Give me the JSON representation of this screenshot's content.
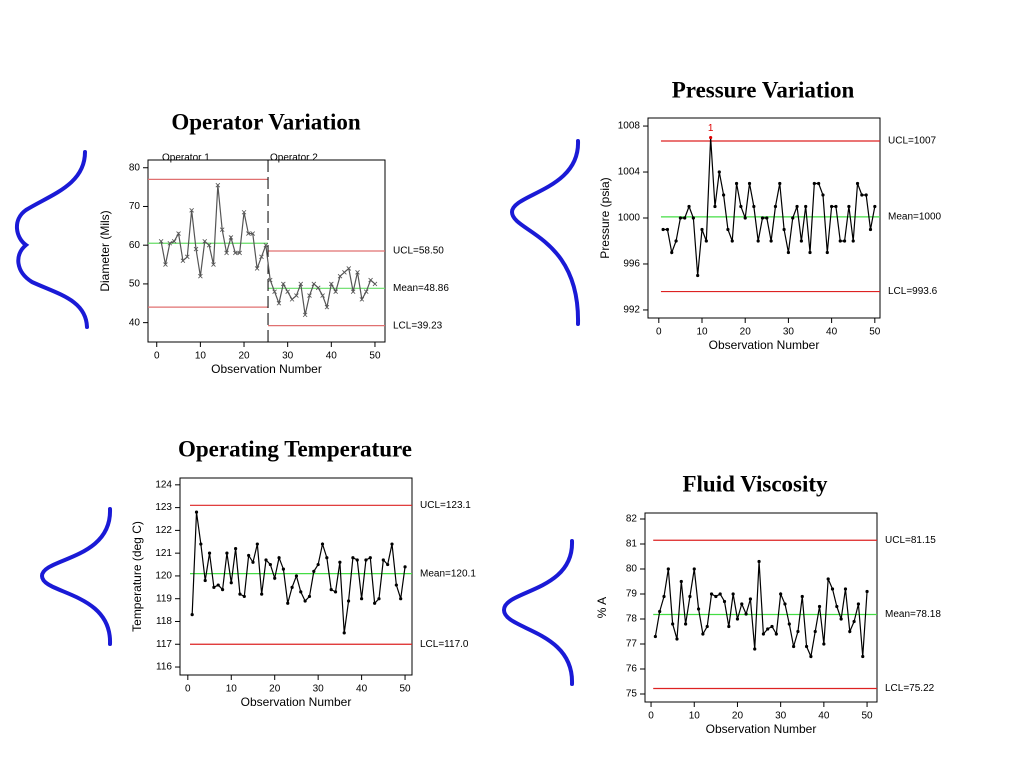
{
  "chart_data": [
    {
      "type": "line",
      "title": "Operator Variation",
      "xlabel": "Observation Number",
      "ylabel": "Diameter (Mils)",
      "x": [
        1,
        2,
        3,
        4,
        5,
        6,
        7,
        8,
        9,
        10,
        11,
        12,
        13,
        14,
        15,
        16,
        17,
        18,
        19,
        20,
        21,
        22,
        23,
        24,
        25,
        26,
        27,
        28,
        29,
        30,
        31,
        32,
        33,
        34,
        35,
        36,
        37,
        38,
        39,
        40,
        41,
        42,
        43,
        44,
        45,
        46,
        47,
        48,
        49,
        50
      ],
      "values": [
        61,
        55,
        60.5,
        61,
        63,
        56,
        57,
        69,
        59,
        52,
        61,
        60,
        55,
        75.5,
        64,
        58,
        62,
        58,
        58,
        68.5,
        63,
        63,
        54,
        57,
        60,
        51,
        48,
        45,
        50,
        48,
        46,
        47,
        50,
        42,
        47,
        50,
        49,
        47,
        44,
        50,
        48,
        52,
        53,
        54,
        48,
        53,
        46,
        48,
        51,
        50
      ],
      "color": "#555555",
      "marker": "x",
      "xlim": [
        -2,
        52.3
      ],
      "ylim": [
        35,
        82
      ],
      "xticks": [
        0,
        10,
        20,
        30,
        40,
        50
      ],
      "yticks": [
        40,
        50,
        60,
        70,
        80
      ],
      "phases": [
        "Operator 1",
        "Operator 2"
      ],
      "divider": 25.5,
      "limits": [
        {
          "value": 77,
          "color": "#e07070",
          "x": [
            -2,
            25.5
          ]
        },
        {
          "value": 60.5,
          "color": "#66dd66",
          "x": [
            -2,
            25.5
          ]
        },
        {
          "value": 44,
          "color": "#e07070",
          "x": [
            -2,
            25.5
          ]
        },
        {
          "label": "UCL=58.50",
          "value": 58.5,
          "color": "#e07070",
          "x": [
            25.5,
            52.3
          ]
        },
        {
          "label": "Mean=48.86",
          "value": 48.86,
          "color": "#66dd66",
          "x": [
            25.5,
            52.3
          ]
        },
        {
          "label": "LCL=39.23",
          "value": 39.23,
          "color": "#e07070",
          "x": [
            25.5,
            52.3
          ]
        }
      ]
    },
    {
      "type": "line",
      "title": "Pressure Variation",
      "xlabel": "Observation Number",
      "ylabel": "Pressure (psia)",
      "x": [
        1,
        2,
        3,
        4,
        5,
        6,
        7,
        8,
        9,
        10,
        11,
        12,
        13,
        14,
        15,
        16,
        17,
        18,
        19,
        20,
        21,
        22,
        23,
        24,
        25,
        26,
        27,
        28,
        29,
        30,
        31,
        32,
        33,
        34,
        35,
        36,
        37,
        38,
        39,
        40,
        41,
        42,
        43,
        44,
        45,
        46,
        47,
        48,
        49,
        50
      ],
      "values": [
        999,
        999,
        997,
        998,
        1000,
        1000,
        1001,
        1000,
        995,
        999,
        998,
        1007,
        1001,
        1004,
        1002,
        999,
        998,
        1003,
        1001,
        1000,
        1003,
        1001,
        998,
        1000,
        1000,
        998,
        1001,
        1003,
        999,
        997,
        1000,
        1001,
        998,
        1001,
        997,
        1003,
        1003,
        1002,
        997,
        1001,
        1001,
        998,
        998,
        1001,
        998,
        1003,
        1002,
        1002,
        999,
        1001
      ],
      "color": "#000000",
      "marker": "dot",
      "xlim": [
        -2.5,
        51.2
      ],
      "ylim": [
        991.3,
        1008.7
      ],
      "xticks": [
        0,
        10,
        20,
        30,
        40,
        50
      ],
      "yticks": [
        992,
        996,
        1000,
        1004,
        1008
      ],
      "annotations": [
        {
          "text": "1",
          "x": 12,
          "color": "#dd0000"
        }
      ],
      "limits": [
        {
          "label": "UCL=1007",
          "value": 1006.7,
          "color": "#dd2222"
        },
        {
          "label": "Mean=1000",
          "value": 1000.1,
          "color": "#44dd44"
        },
        {
          "label": "LCL=993.6",
          "value": 993.6,
          "color": "#dd2222"
        }
      ]
    },
    {
      "type": "line",
      "title": "Operating Temperature",
      "xlabel": "Observation Number",
      "ylabel": "Temperature (deg C)",
      "x": [
        1,
        2,
        3,
        4,
        5,
        6,
        7,
        8,
        9,
        10,
        11,
        12,
        13,
        14,
        15,
        16,
        17,
        18,
        19,
        20,
        21,
        22,
        23,
        24,
        25,
        26,
        27,
        28,
        29,
        30,
        31,
        32,
        33,
        34,
        35,
        36,
        37,
        38,
        39,
        40,
        41,
        42,
        43,
        44,
        45,
        46,
        47,
        48,
        49,
        50
      ],
      "values": [
        118.3,
        122.8,
        121.4,
        119.8,
        121,
        119.5,
        119.6,
        119.4,
        121,
        119.7,
        121.2,
        119.2,
        119.1,
        120.9,
        120.6,
        121.4,
        119.2,
        120.7,
        120.5,
        119.9,
        120.8,
        120.3,
        118.8,
        119.5,
        120,
        119.3,
        118.9,
        119.1,
        120.2,
        120.5,
        121.4,
        120.8,
        119.4,
        119.3,
        120.6,
        117.5,
        118.9,
        120.8,
        120.7,
        119,
        120.7,
        120.8,
        118.8,
        119,
        120.7,
        120.5,
        121.4,
        119.6,
        119,
        120.4
      ],
      "color": "#000000",
      "marker": "dot",
      "xlim": [
        -1.8,
        51.6
      ],
      "ylim": [
        115.65,
        124.3
      ],
      "xticks": [
        0,
        10,
        20,
        30,
        40,
        50
      ],
      "yticks": [
        116,
        117,
        118,
        119,
        120,
        121,
        122,
        123,
        124
      ],
      "limits": [
        {
          "label": "UCL=123.1",
          "value": 123.1,
          "color": "#dd2222"
        },
        {
          "label": "Mean=120.1",
          "value": 120.1,
          "color": "#44dd44"
        },
        {
          "label": "LCL=117.0",
          "value": 117,
          "color": "#dd2222"
        }
      ]
    },
    {
      "type": "line",
      "title": "Fluid Viscosity",
      "xlabel": "Observation Number",
      "ylabel": "% A",
      "x": [
        1,
        2,
        3,
        4,
        5,
        6,
        7,
        8,
        9,
        10,
        11,
        12,
        13,
        14,
        15,
        16,
        17,
        18,
        19,
        20,
        21,
        22,
        23,
        24,
        25,
        26,
        27,
        28,
        29,
        30,
        31,
        32,
        33,
        34,
        35,
        36,
        37,
        38,
        39,
        40,
        41,
        42,
        43,
        44,
        45,
        46,
        47,
        48,
        49,
        50
      ],
      "values": [
        77.3,
        78.3,
        78.9,
        80,
        77.8,
        77.2,
        79.5,
        77.8,
        78.9,
        80,
        78.4,
        77.4,
        77.7,
        79,
        78.9,
        79,
        78.7,
        77.7,
        79,
        78,
        78.6,
        78.2,
        78.8,
        76.8,
        80.3,
        77.4,
        77.6,
        77.7,
        77.4,
        79,
        78.6,
        77.8,
        76.9,
        77.5,
        78.9,
        76.9,
        76.5,
        77.5,
        78.5,
        77,
        79.6,
        79.2,
        78.5,
        78,
        79.2,
        77.5,
        77.9,
        78.6,
        76.5,
        79.1
      ],
      "color": "#000000",
      "marker": "dot",
      "xlim": [
        -1.4,
        52.3
      ],
      "ylim": [
        74.68,
        82.24
      ],
      "xticks": [
        0,
        10,
        20,
        30,
        40,
        50
      ],
      "yticks": [
        75,
        76,
        77,
        78,
        79,
        80,
        81,
        82
      ],
      "limits": [
        {
          "label": "UCL=81.15",
          "value": 81.15,
          "color": "#dd2222"
        },
        {
          "label": "Mean=78.18",
          "value": 78.18,
          "color": "#44dd44"
        },
        {
          "label": "LCL=75.22",
          "value": 75.22,
          "color": "#dd2222"
        }
      ]
    }
  ]
}
